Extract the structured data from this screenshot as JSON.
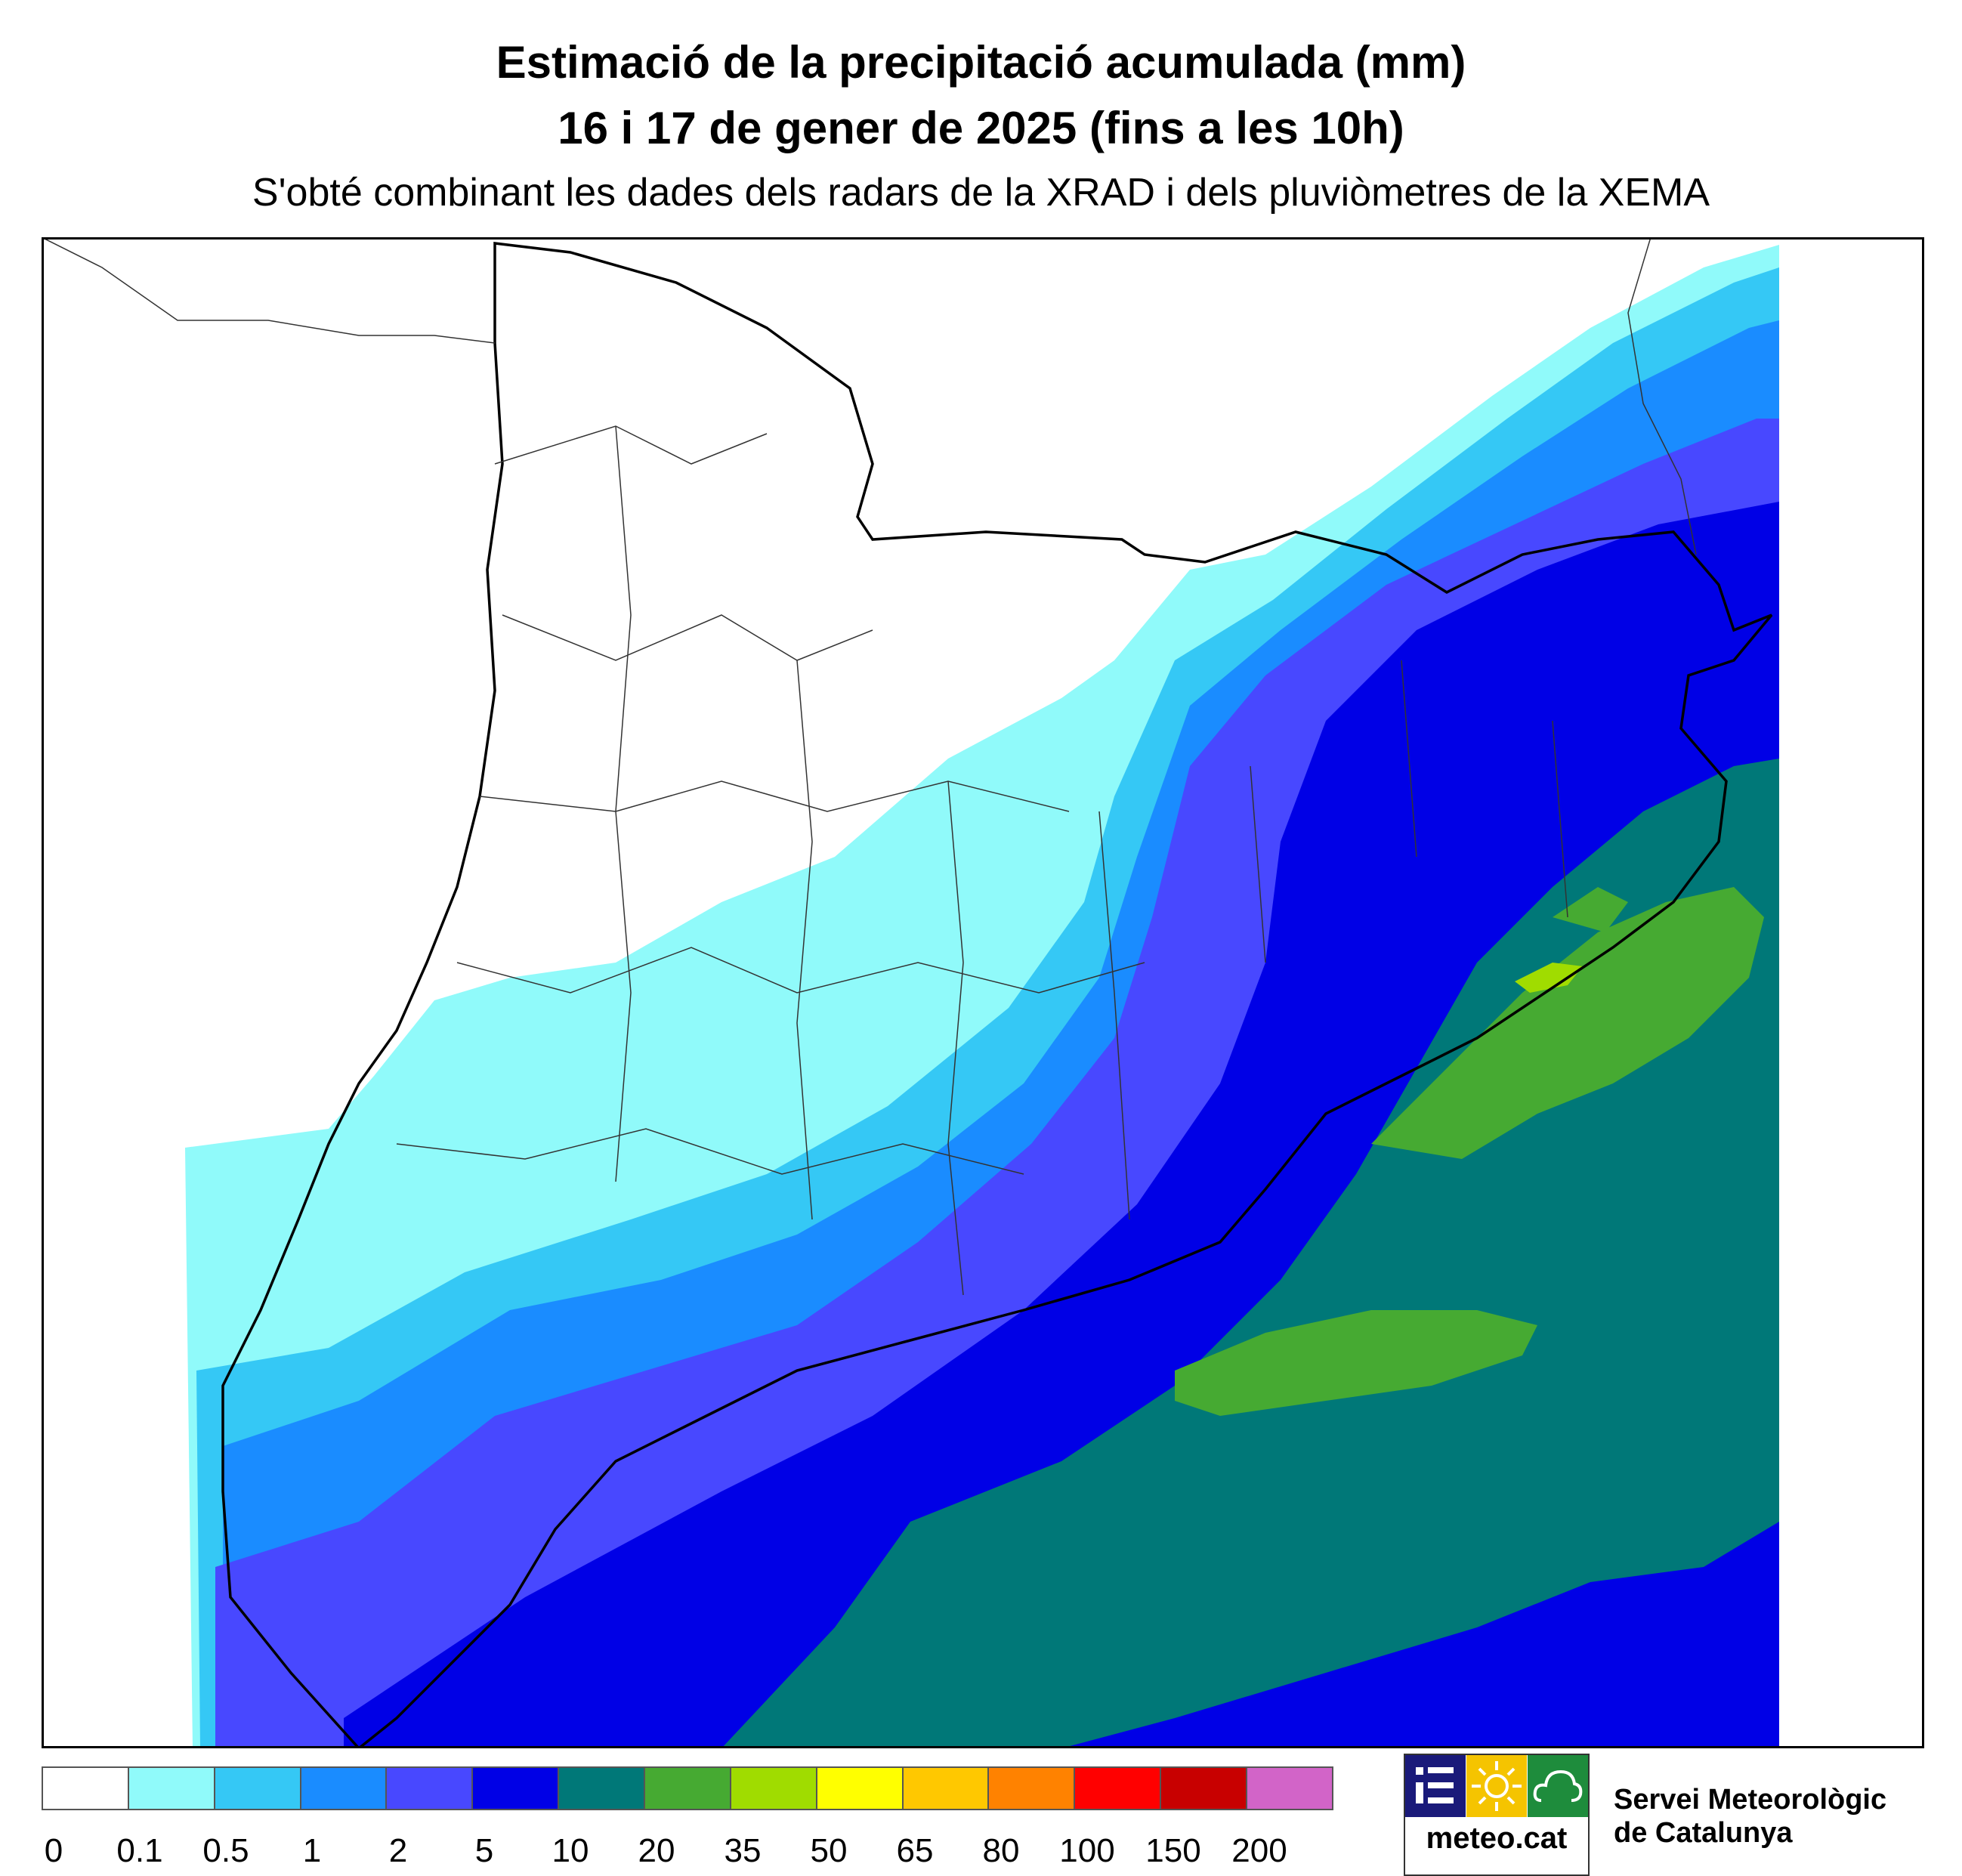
{
  "header": {
    "title_line1": "Estimació de la precipitació acumulada (mm)",
    "title_line2": "16 i 17 de gener de 2025 (fins a les 10h)",
    "subtitle": "S'obté combinant les dades dels radars de la XRAD i dels pluviòmetres de la XEMA"
  },
  "legend": {
    "ticks": [
      "0",
      "0.1",
      "0.5",
      "1",
      "2",
      "5",
      "10",
      "20",
      "35",
      "50",
      "65",
      "80",
      "100",
      "150",
      "200"
    ],
    "colors": [
      "#ffffff",
      "#90fafa",
      "#35c8f5",
      "#1a8cff",
      "#4848ff",
      "#0000e6",
      "#007878",
      "#46aa32",
      "#a0dc00",
      "#ffff00",
      "#ffc800",
      "#ff8200",
      "#ff0000",
      "#c80000",
      "#d264c8"
    ]
  },
  "logo": {
    "text": "meteo.cat",
    "icons": [
      "stripes-icon",
      "sun-icon",
      "cloud-icon"
    ],
    "colors": [
      "#1a1a7a",
      "#f5c400",
      "#1e8c3c"
    ]
  },
  "organization": {
    "line1": "Servei Meteorològic",
    "line2": "de Catalunya"
  }
}
